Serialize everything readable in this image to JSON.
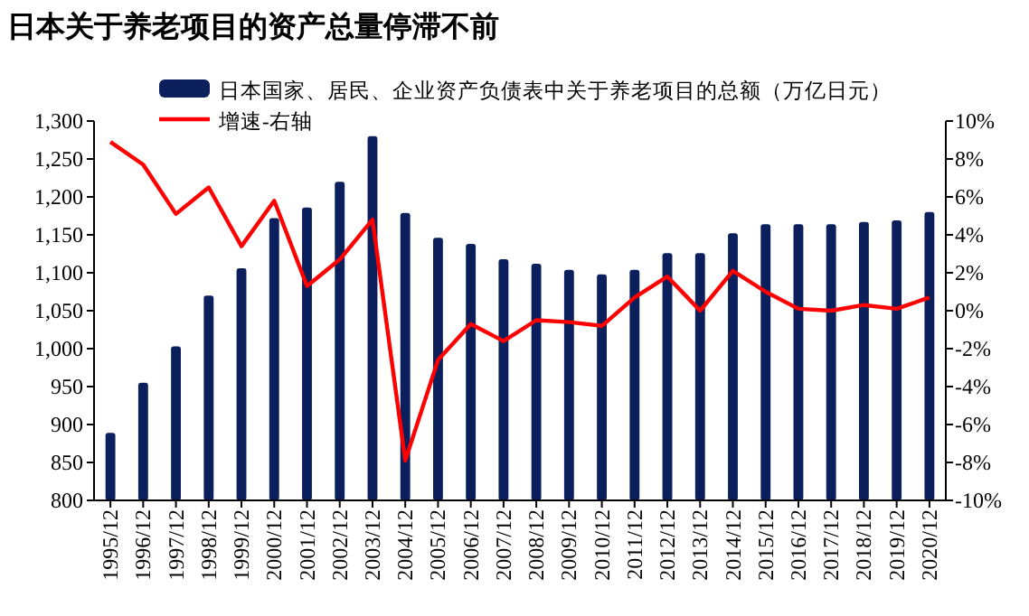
{
  "chart_data": {
    "type": "bar",
    "title": "日本关于养老项目的资产总量停滞不前",
    "categories": [
      "1995/12",
      "1996/12",
      "1997/12",
      "1998/12",
      "1999/12",
      "2000/12",
      "2001/12",
      "2002/12",
      "2003/12",
      "2004/12",
      "2005/12",
      "2006/12",
      "2007/12",
      "2008/12",
      "2009/12",
      "2010/12",
      "2011/12",
      "2012/12",
      "2013/12",
      "2014/12",
      "2015/12",
      "2016/12",
      "2017/12",
      "2018/12",
      "2019/12",
      "2020/12"
    ],
    "series": [
      {
        "name": "日本国家、居民、企业资产负债表中关于养老项目的总额（万亿日元）",
        "color": "#0b1f5c",
        "values": [
          889,
          955,
          1003,
          1070,
          1106,
          1172,
          1186,
          1220,
          1280,
          1179,
          1146,
          1138,
          1118,
          1112,
          1104,
          1098,
          1104,
          1126,
          1126,
          1152,
          1164,
          1164,
          1164,
          1167,
          1169,
          1180
        ]
      },
      {
        "name": "增速-右轴",
        "type": "line",
        "axis": "y2",
        "color": "#ff0000",
        "values": [
          8.9,
          7.7,
          5.1,
          6.5,
          3.4,
          5.8,
          1.3,
          2.7,
          4.8,
          -7.9,
          -2.6,
          -0.7,
          -1.6,
          -0.5,
          -0.6,
          -0.8,
          0.7,
          1.8,
          0.0,
          2.1,
          1.0,
          0.1,
          0.0,
          0.3,
          0.1,
          0.7
        ]
      }
    ],
    "ylim": [
      800,
      1300
    ],
    "yticks": [
      800,
      850,
      900,
      950,
      {
        "value": 1000,
        "label": "1,000"
      },
      {
        "value": 1050,
        "label": "1,050"
      },
      {
        "value": 1100,
        "label": "1,100"
      },
      {
        "value": 1150,
        "label": "1,150"
      },
      {
        "value": 1200,
        "label": "1,200"
      },
      {
        "value": 1250,
        "label": "1,250"
      },
      {
        "value": 1300,
        "label": "1,300"
      }
    ],
    "y2lim": [
      -10,
      10
    ],
    "y2ticks": [
      {
        "value": -10,
        "label": "-10%"
      },
      {
        "value": -8,
        "label": "-8%"
      },
      {
        "value": -6,
        "label": "-6%"
      },
      {
        "value": -4,
        "label": "-4%"
      },
      {
        "value": -2,
        "label": "-2%"
      },
      {
        "value": 0,
        "label": "0%"
      },
      {
        "value": 2,
        "label": "2%"
      },
      {
        "value": 4,
        "label": "4%"
      },
      {
        "value": 6,
        "label": "6%"
      },
      {
        "value": 8,
        "label": "8%"
      },
      {
        "value": 10,
        "label": "10%"
      }
    ],
    "legend": "top",
    "grid": false,
    "line_style": "solid",
    "marker": "none"
  }
}
